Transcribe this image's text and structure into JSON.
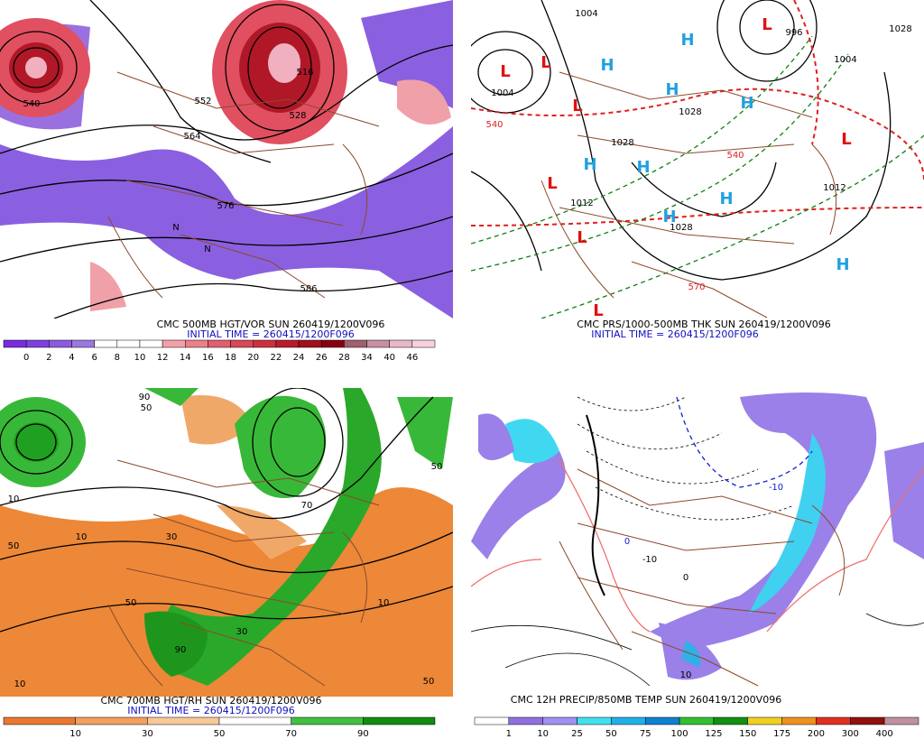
{
  "panels": [
    {
      "caption": "CMC 500MB HGT/VOR SUN 260419/1200V096",
      "init": "INITIAL TIME = 260415/1200F096",
      "map_labels": [
        "540",
        "552",
        "516",
        "528",
        "564",
        "576",
        "586",
        "N",
        "N"
      ],
      "legend": {
        "labels": [
          "0",
          "2",
          "4",
          "6",
          "8",
          "10",
          "12",
          "14",
          "16",
          "18",
          "20",
          "22",
          "24",
          "26",
          "28",
          "34",
          "40",
          "46"
        ],
        "colors": [
          "#7a2be0",
          "#8040e0",
          "#8c5ae0",
          "#9a78e0",
          "#ffffff",
          "#ffffff",
          "#ffffff",
          "#f4a0a8",
          "#ec8088",
          "#e06070",
          "#d84858",
          "#cc3040",
          "#b81c2c",
          "#a01020",
          "#880010",
          "#a06070",
          "#c890a0",
          "#e8b8c8",
          "#f8d0e0"
        ]
      }
    },
    {
      "caption": "CMC PRS/1000-500MB THK SUN 260419/1200V096",
      "init": "INITIAL TIME = 260415/1200F096",
      "map_labels": [
        "1004",
        "1004",
        "1028",
        "1028",
        "1028",
        "1012",
        "1012",
        "996",
        "1028",
        "1004",
        "540",
        "540",
        "570"
      ],
      "lows": [
        "L",
        "L",
        "L",
        "L",
        "L",
        "L",
        "L",
        "L"
      ],
      "highs": [
        "H",
        "H",
        "H",
        "H",
        "H",
        "H",
        "H",
        "H",
        "H"
      ]
    },
    {
      "caption": "CMC 700MB HGT/RH SUN 260419/1200V096",
      "init": "INITIAL TIME = 260415/1200F096",
      "map_labels": [
        "50",
        "10",
        "10",
        "30",
        "50",
        "90",
        "70",
        "50",
        "30",
        "10",
        "10",
        "50",
        "90",
        "50"
      ],
      "legend": {
        "labels": [
          "10",
          "30",
          "50",
          "70",
          "90"
        ],
        "colors": [
          "#e87830",
          "#f0a060",
          "#f8c898",
          "#ffffff",
          "#40c040",
          "#108c10"
        ]
      }
    },
    {
      "caption": "CMC 12H PRECIP/850MB TEMP SUN 260419/1200V096",
      "map_labels": [
        "-10",
        "0",
        "-10",
        "0",
        "10"
      ],
      "legend": {
        "labels": [
          "1",
          "10",
          "25",
          "50",
          "75",
          "100",
          "125",
          "150",
          "175",
          "200",
          "300",
          "400"
        ],
        "colors": [
          "#ffffff",
          "#9070e0",
          "#a090f0",
          "#40e0f0",
          "#20b0e8",
          "#1080d0",
          "#30c030",
          "#109010",
          "#f0d020",
          "#f09020",
          "#e03020",
          "#901010",
          "#c090a0"
        ]
      }
    }
  ]
}
